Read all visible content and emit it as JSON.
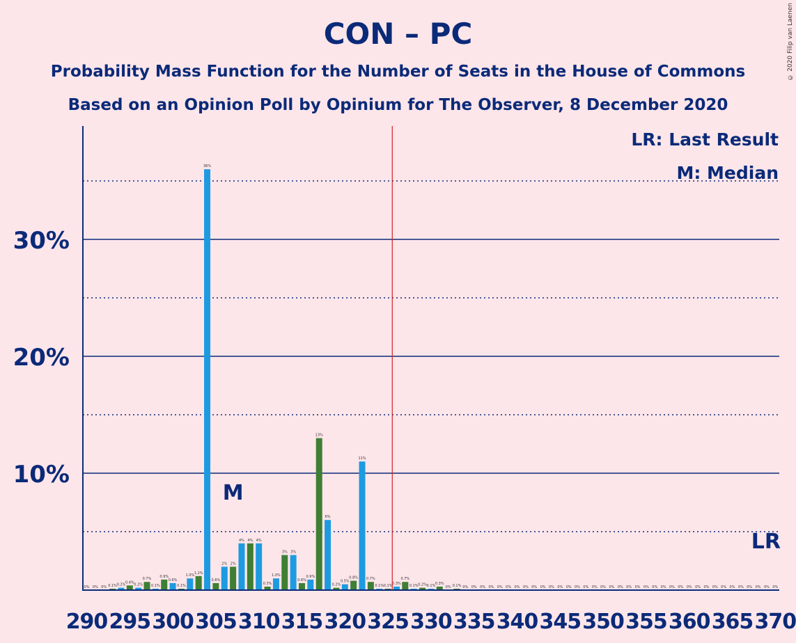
{
  "title": "CON – PC",
  "subtitle1": "Probability Mass Function for the Number of Seats in the House of Commons",
  "subtitle2": "Based on an Opinion Poll by Opinium for The Observer, 8 December 2020",
  "copyright": "© 2020 Filip van Laenen",
  "colors": {
    "background": "#FDE6EA",
    "text": "#0B2A78",
    "axis": "#0B2A78",
    "bar_blue": "#1E9BE0",
    "bar_green": "#3E7F33",
    "last_result_line": "#D0202A"
  },
  "chart_data": {
    "type": "bar",
    "x_tick_labels": [
      "290",
      "295",
      "300",
      "305",
      "310",
      "315",
      "320",
      "325",
      "330",
      "335",
      "340",
      "345",
      "350",
      "355",
      "360",
      "365",
      "370"
    ],
    "y_tick_labels": [
      "10%",
      "20%",
      "30%"
    ],
    "ylim": [
      0,
      0.39
    ],
    "grid": "solid lines at 10%, 20%, 30%; dotted lines at 5%, 15%, 25%, 35%",
    "legend": {
      "last_result": "LR: Last Result",
      "median": "M: Median"
    },
    "median_seat": 307,
    "median_label": "M",
    "last_result_seat": 370,
    "last_result_label": "LR",
    "majority_line_seat": 326,
    "series": [
      {
        "x": [
          290,
          291,
          292,
          293,
          294,
          295,
          296,
          297,
          298,
          299,
          300,
          301,
          302,
          303,
          304,
          305,
          306,
          307,
          308,
          309,
          310,
          311,
          312,
          313,
          314,
          315,
          316,
          317,
          318,
          319,
          320,
          321,
          322,
          323,
          324,
          325,
          326,
          327,
          328,
          329,
          330,
          331,
          332,
          333,
          334,
          335,
          336,
          337,
          338,
          339,
          340,
          341,
          342,
          343,
          344,
          345,
          346,
          347,
          348,
          349,
          350,
          351,
          352,
          353,
          354,
          355,
          356,
          357,
          358,
          359,
          360,
          361,
          362,
          363,
          364,
          365,
          366,
          367,
          368,
          369,
          370
        ],
        "values": [
          0,
          0,
          0,
          0.001,
          0.002,
          0.004,
          0.002,
          0.007,
          0.001,
          0.009,
          0.006,
          0.001,
          0.01,
          0.012,
          0.36,
          0.006,
          0.02,
          0.02,
          0.04,
          0.04,
          0.04,
          0.003,
          0.01,
          0.03,
          0.03,
          0.006,
          0.009,
          0.13,
          0.06,
          0.002,
          0.005,
          0.008,
          0.11,
          0.007,
          0.001,
          0.001,
          0.003,
          0.007,
          0.001,
          0.002,
          0.001,
          0.003,
          0,
          0.001,
          0,
          0,
          0,
          0,
          0,
          0,
          0,
          0,
          0,
          0,
          0,
          0,
          0,
          0,
          0,
          0,
          0,
          0,
          0,
          0,
          0,
          0,
          0,
          0,
          0,
          0,
          0,
          0,
          0,
          0,
          0,
          0,
          0,
          0,
          0,
          0,
          0
        ],
        "data_labels": [
          "0%",
          "0%",
          "0%",
          "0.1%",
          "0.2%",
          "0.4%",
          "0.2%",
          "0.7%",
          "0.1%",
          "0.9%",
          "0.6%",
          "0.1%",
          "1.0%",
          "1.2%",
          "36%",
          "0.6%",
          "2%",
          "2%",
          "4%",
          "4%",
          "4%",
          "0.3%",
          "1.0%",
          "3%",
          "3%",
          "0.6%",
          "0.9%",
          "13%",
          "6%",
          "0.2%",
          "0.5%",
          "0.8%",
          "11%",
          "0.7%",
          "0.1%",
          "0.1%",
          "0.3%",
          "0.7%",
          "0.1%",
          "0.2%",
          "0.1%",
          "0.3%",
          "0%",
          "0.1%",
          "0%",
          "0%",
          "0%",
          "0%",
          "0%",
          "0%",
          "0%",
          "0%",
          "0%",
          "0%",
          "0%",
          "0%",
          "0%",
          "0%",
          "0%",
          "0%",
          "0%",
          "0%",
          "0%",
          "0%",
          "0%",
          "0%",
          "0%",
          "0%",
          "0%",
          "0%",
          "0%",
          "0%",
          "0%",
          "0%",
          "0%",
          "0%",
          "0%",
          "0%",
          "0%",
          "0%",
          "0%"
        ]
      }
    ]
  }
}
